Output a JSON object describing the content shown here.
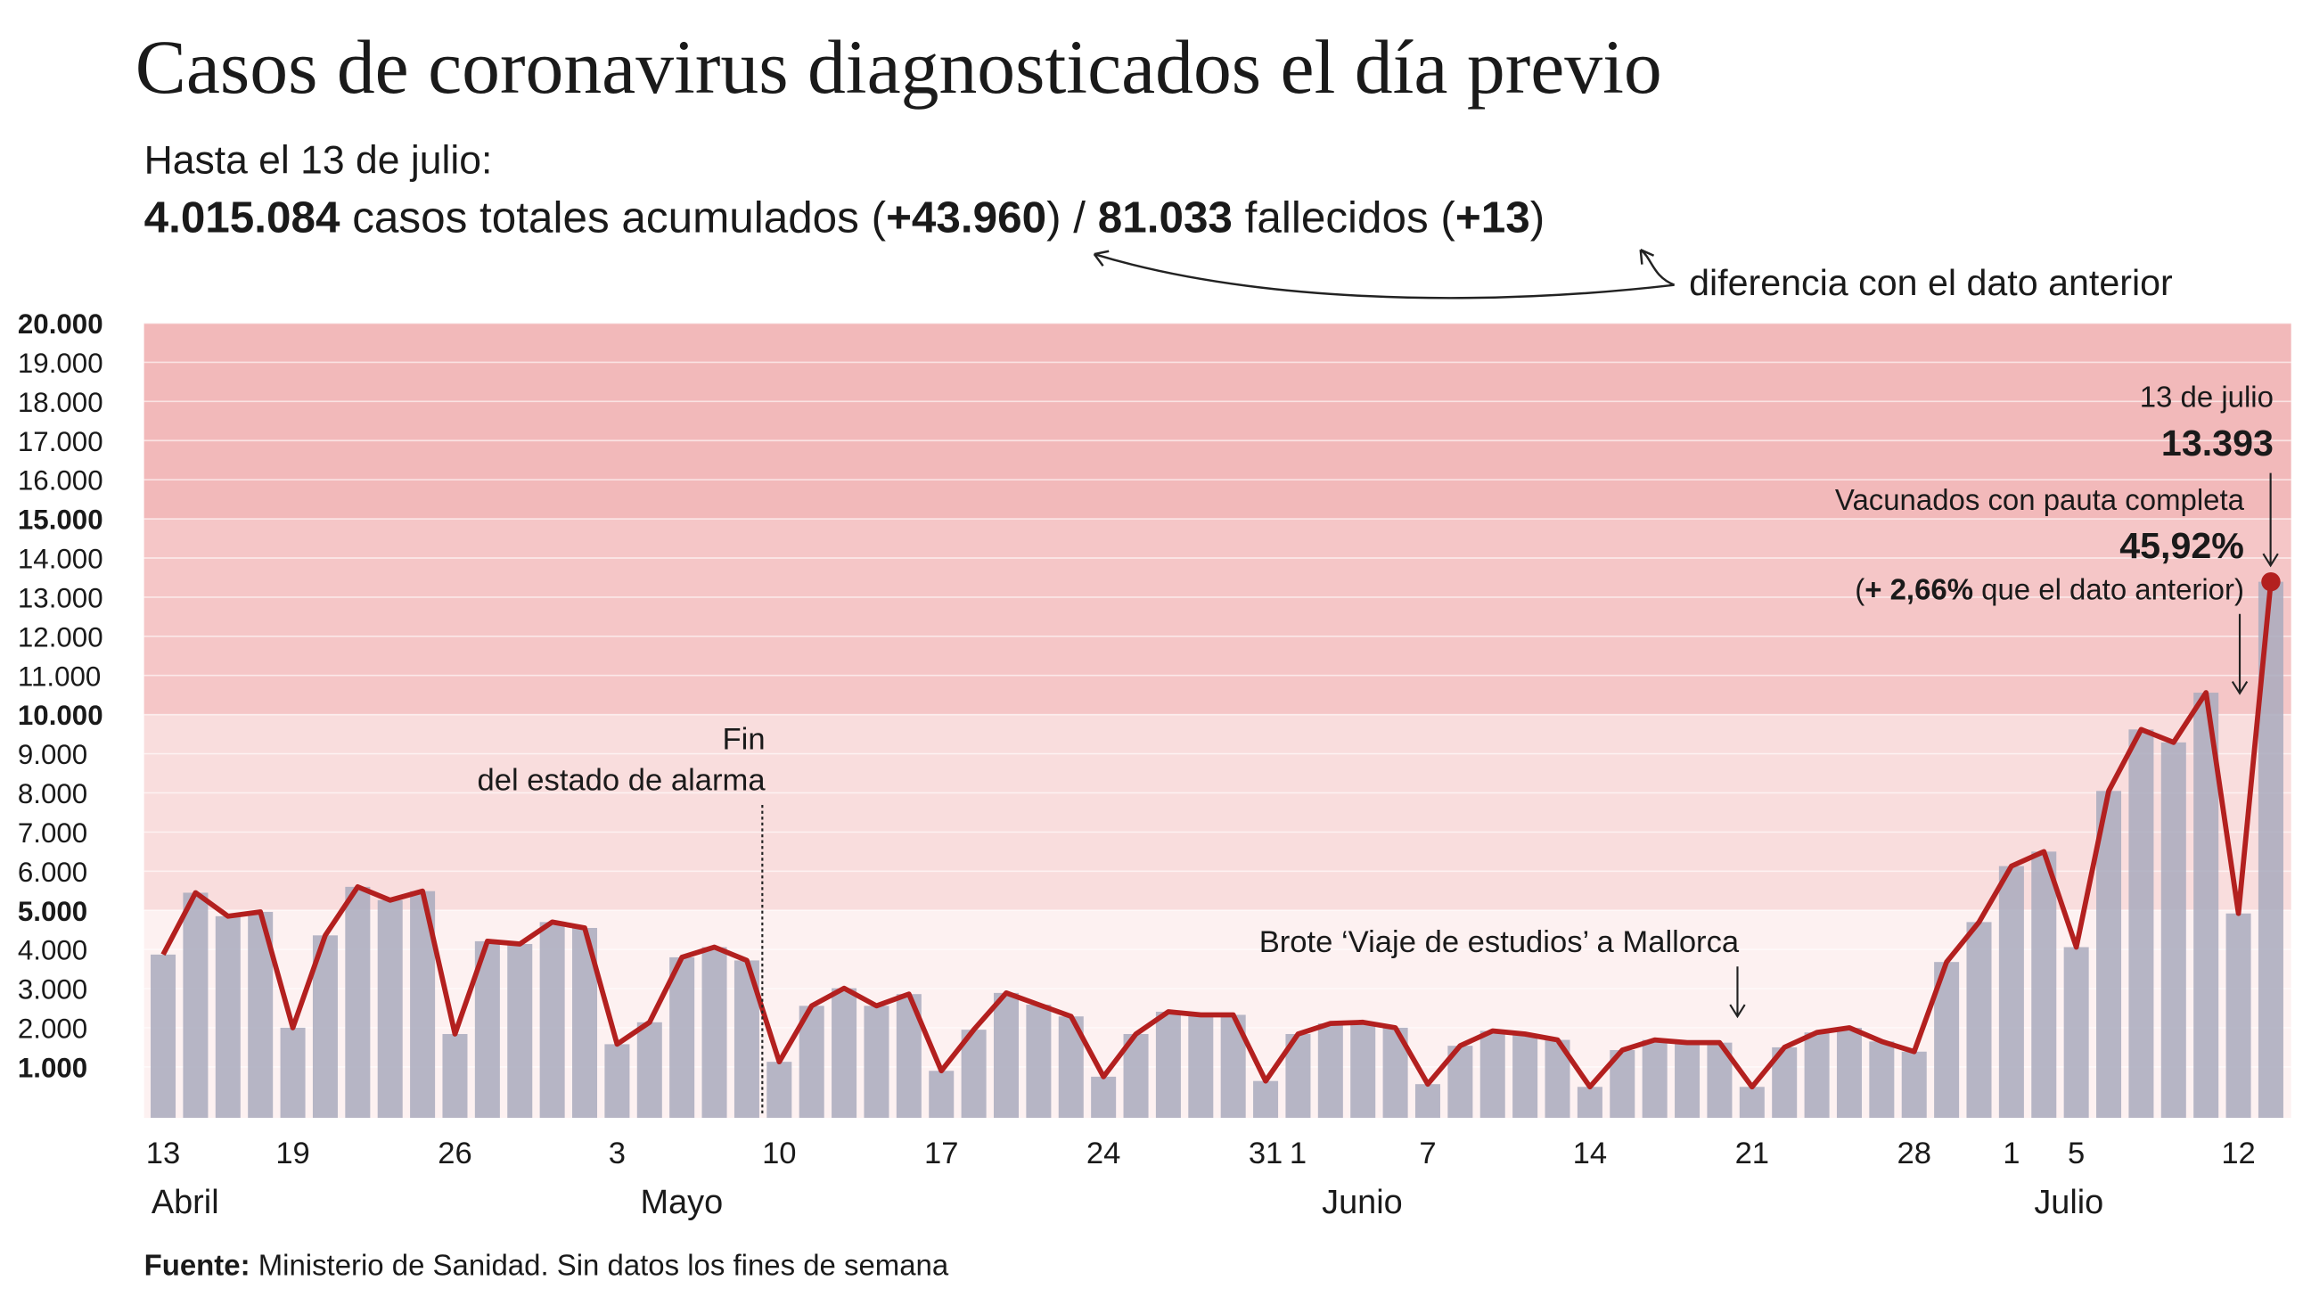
{
  "chart_data": {
    "type": "bar_line",
    "title": "Casos de coronavirus diagnosticados el día previo",
    "subtitle": "Hasta el 13 de julio:",
    "summary": [
      {
        "text": "4.015.084",
        "bold": true
      },
      {
        "text": " casos totales acumulados (",
        "bold": false
      },
      {
        "text": "+43.960",
        "bold": true
      },
      {
        "text": ") / ",
        "bold": false
      },
      {
        "text": "81.033",
        "bold": true
      },
      {
        "text": " fallecidos (",
        "bold": false
      },
      {
        "text": "+13",
        "bold": true
      },
      {
        "text": ")",
        "bold": false
      }
    ],
    "summary_note": "diferencia con el dato anterior",
    "categories": [
      "13",
      null,
      null,
      null,
      "19",
      null,
      null,
      null,
      null,
      "26",
      null,
      null,
      null,
      null,
      "3",
      null,
      null,
      null,
      null,
      "10",
      null,
      null,
      null,
      null,
      "17",
      null,
      null,
      null,
      null,
      "24",
      null,
      null,
      null,
      null,
      "31",
      "1",
      null,
      null,
      null,
      "7",
      null,
      null,
      null,
      null,
      "14",
      null,
      null,
      null,
      null,
      "21",
      null,
      null,
      null,
      null,
      "28",
      null,
      null,
      "1",
      null,
      "5",
      null,
      null,
      null,
      null,
      "12",
      null
    ],
    "x_group_labels": [
      "Abril",
      "Mayo",
      "Junio",
      "Julio"
    ],
    "values": [
      3870,
      5450,
      4850,
      4960,
      2000,
      4360,
      5600,
      5260,
      5490,
      1840,
      4210,
      4140,
      4700,
      4550,
      1580,
      2140,
      3800,
      4060,
      3720,
      1130,
      2560,
      3010,
      2560,
      2860,
      900,
      1950,
      2890,
      2590,
      2290,
      750,
      1840,
      2410,
      2330,
      2330,
      640,
      1840,
      2110,
      2140,
      2000,
      560,
      1540,
      1920,
      1840,
      1690,
      490,
      1430,
      1690,
      1620,
      1620,
      490,
      1500,
      1880,
      2000,
      1650,
      1390,
      3680,
      4700,
      6130,
      6500,
      4060,
      8050,
      9620,
      9290,
      10560,
      4920,
      13393
    ],
    "value_labels": [
      null,
      null,
      null,
      null,
      null,
      null,
      null,
      null,
      null,
      null,
      null,
      null,
      null,
      null,
      null,
      null,
      null,
      null,
      null,
      null,
      null,
      null,
      null,
      null,
      null,
      null,
      null,
      null,
      null,
      null,
      null,
      null,
      null,
      null,
      null,
      null,
      null,
      null,
      null,
      null,
      null,
      null,
      null,
      null,
      null,
      null,
      null,
      null,
      null,
      null,
      null,
      null,
      null,
      null,
      null,
      null,
      null,
      null,
      null,
      null,
      null,
      null,
      null,
      null,
      null,
      "13.393"
    ],
    "bar_color": "#a9aabd",
    "line_color": "#b3201f",
    "ylim": [
      0,
      20000
    ],
    "yticks": [
      {
        "value": 1000,
        "label": "1.000",
        "bold": true
      },
      {
        "value": 2000,
        "label": "2.000"
      },
      {
        "value": 3000,
        "label": "3.000"
      },
      {
        "value": 4000,
        "label": "4.000"
      },
      {
        "value": 5000,
        "label": "5.000",
        "bold": true
      },
      {
        "value": 6000,
        "label": "6.000"
      },
      {
        "value": 7000,
        "label": "7.000"
      },
      {
        "value": 8000,
        "label": "8.000"
      },
      {
        "value": 9000,
        "label": "9.000"
      },
      {
        "value": 10000,
        "label": "10.000",
        "bold": true
      },
      {
        "value": 11000,
        "label": "11.000"
      },
      {
        "value": 12000,
        "label": "12.000"
      },
      {
        "value": 13000,
        "label": "13.000"
      },
      {
        "value": 14000,
        "label": "14.000"
      },
      {
        "value": 15000,
        "label": "15.000",
        "bold": true
      },
      {
        "value": 16000,
        "label": "16.000"
      },
      {
        "value": 17000,
        "label": "17.000"
      },
      {
        "value": 18000,
        "label": "18.000"
      },
      {
        "value": 19000,
        "label": "19.000"
      },
      {
        "value": 20000,
        "label": "20.000",
        "bold": true
      }
    ],
    "bands": [
      {
        "from": 0,
        "to": 5000,
        "color": "#fdf1f1"
      },
      {
        "from": 5000,
        "to": 10000,
        "color": "#f9dddd"
      },
      {
        "from": 10000,
        "to": 15000,
        "color": "#f5c6c7"
      },
      {
        "from": 15000,
        "to": 20000,
        "color": "#f2b9ba"
      }
    ],
    "grid": true,
    "annotations": {
      "last_date": "13 de julio",
      "vaccine_title": "Vacunados con pauta completa",
      "vaccine_value": "45,92%",
      "vaccine_change": [
        {
          "text": "(",
          "bold": false
        },
        {
          "text": "+ 2,66%",
          "bold": true
        },
        {
          "text": " que el dato anterior)",
          "bold": false
        }
      ],
      "alarm_1": "Fin",
      "alarm_2": "del estado de alarma",
      "outbreak": "Brote ‘Viaje de estudios’ a Mallorca"
    },
    "source": [
      {
        "text": "Fuente:",
        "bold": true
      },
      {
        "text": " Ministerio de Sanidad. Sin datos los fines de semana",
        "bold": false
      }
    ]
  }
}
